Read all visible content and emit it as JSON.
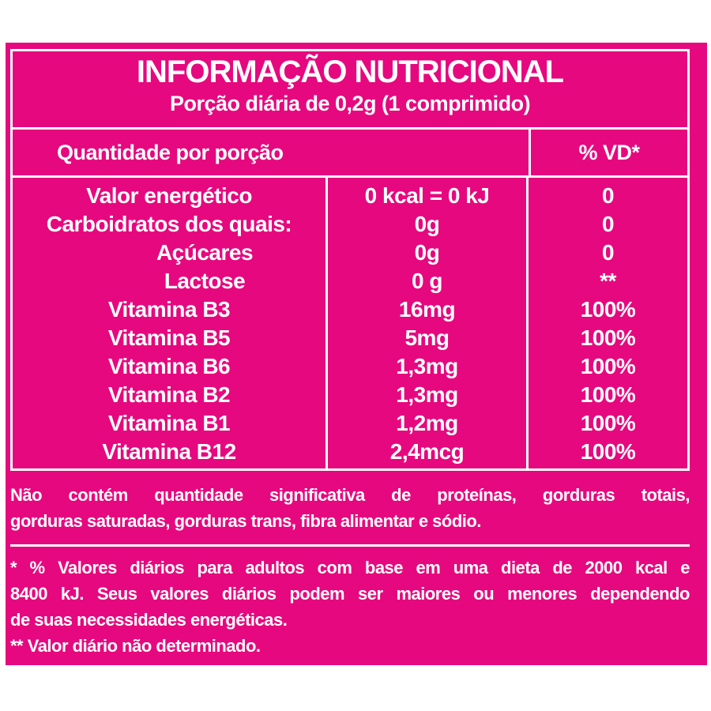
{
  "colors": {
    "label_background": "#e6087e",
    "text": "#ffffff",
    "border": "#ffffff",
    "page_background": "#ffffff"
  },
  "label": {
    "title": "INFORMAÇÃO NUTRICIONAL",
    "serving_line": "Porção diária de 0,2g (1 comprimido)"
  },
  "table": {
    "header": {
      "quantity_label": "Quantidade por porção",
      "vd_label": "% VD*"
    },
    "rows": [
      {
        "label": "Valor energético",
        "amount": "0 kcal = 0 kJ",
        "vd": "0",
        "indent": false
      },
      {
        "label": "Carboidratos dos quais:",
        "amount": "0g",
        "vd": "0",
        "indent": false
      },
      {
        "label": "Açúcares",
        "amount": "0g",
        "vd": "0",
        "indent": true
      },
      {
        "label": "Lactose",
        "amount": "0 g",
        "vd": "**",
        "indent": true
      },
      {
        "label": "Vitamina B3",
        "amount": "16mg",
        "vd": "100%",
        "indent": false
      },
      {
        "label": "Vitamina B5",
        "amount": "5mg",
        "vd": "100%",
        "indent": false
      },
      {
        "label": "Vitamina B6",
        "amount": "1,3mg",
        "vd": "100%",
        "indent": false
      },
      {
        "label": "Vitamina B2",
        "amount": "1,3mg",
        "vd": "100%",
        "indent": false
      },
      {
        "label": "Vitamina B1",
        "amount": "1,2mg",
        "vd": "100%",
        "indent": false
      },
      {
        "label": "Vitamina B12",
        "amount": "2,4mcg",
        "vd": "100%",
        "indent": false
      }
    ]
  },
  "notes": {
    "no_significant": {
      "line1": "Não contém quantidade significativa de proteínas, gorduras totais,",
      "line2": "gorduras saturadas, gorduras trans, fibra alimentar e sódio."
    },
    "daily_values": {
      "line1": "* % Valores diários para adultos com base em uma dieta de 2000 kcal e",
      "line2": "8400 kJ. Seus valores diários podem ser maiores ou menores dependendo",
      "line3": "de suas necessidades energéticas."
    },
    "not_determined": "** Valor diário não determinado."
  }
}
